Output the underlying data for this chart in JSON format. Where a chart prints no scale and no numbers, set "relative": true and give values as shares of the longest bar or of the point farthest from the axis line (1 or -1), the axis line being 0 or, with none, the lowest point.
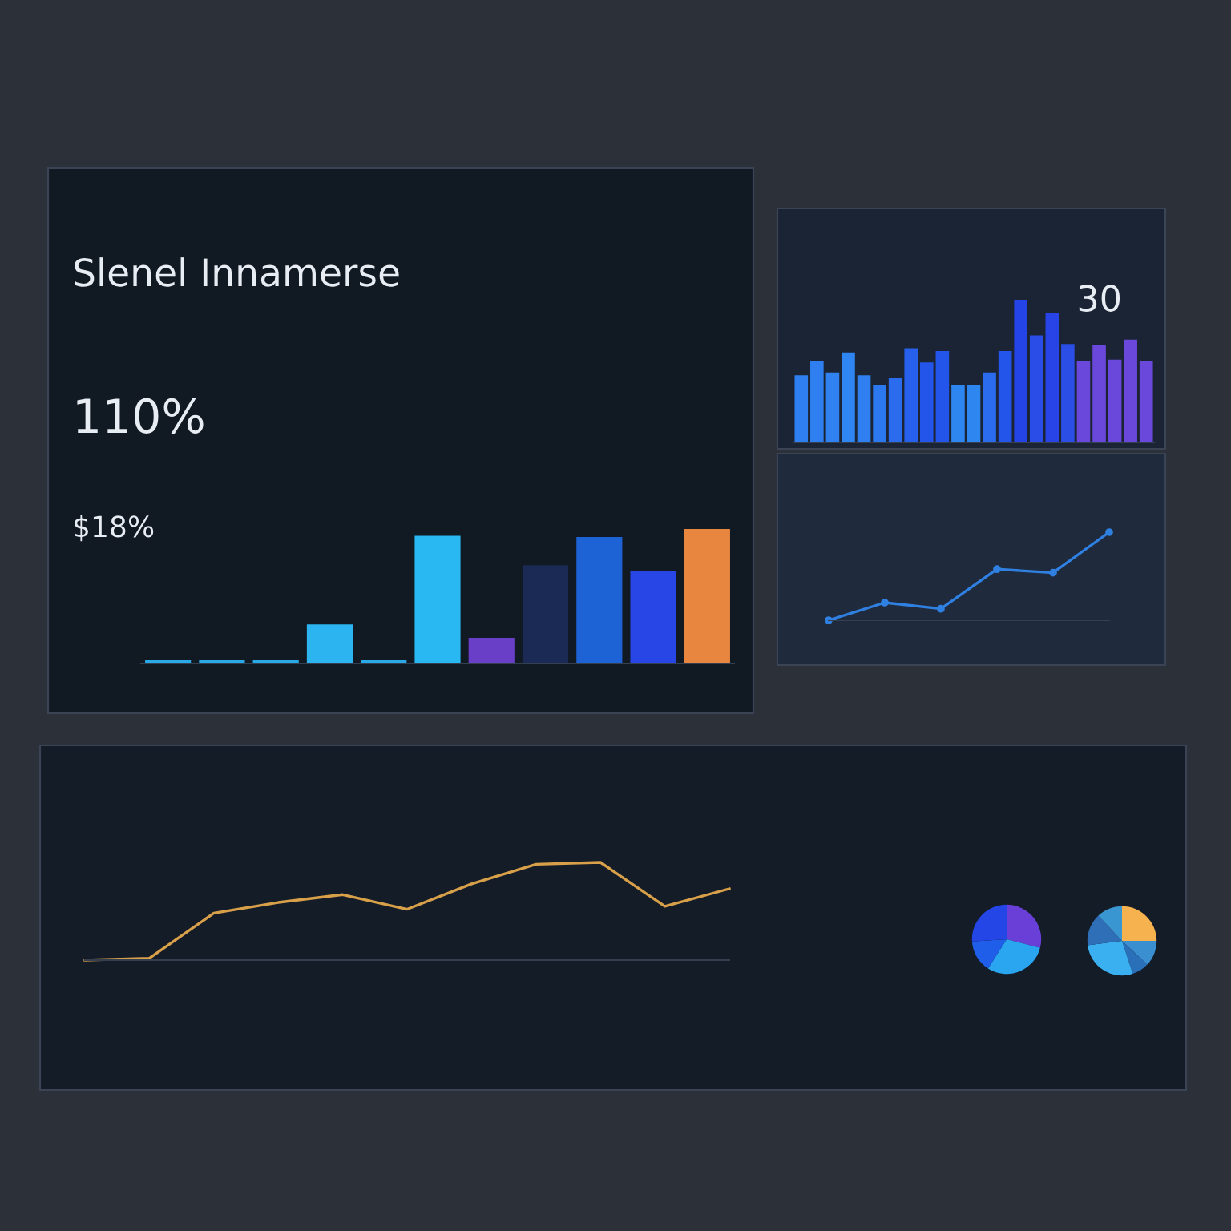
{
  "chart_data": [
    {
      "type": "bar",
      "relative": true,
      "title": "Slenel Innamerse",
      "annotations": [
        "110%",
        "$18%"
      ],
      "categories": [
        null,
        null,
        null,
        null,
        null,
        null,
        null,
        null,
        null,
        null,
        null
      ],
      "values": [
        0.03,
        0.03,
        0.03,
        0.29,
        0.03,
        0.95,
        0.19,
        0.73,
        0.94,
        0.69,
        1
      ],
      "colors": [
        "#29a9e8",
        "#29a9e8",
        "#29a9e8",
        "#2bb4ef",
        "#29a9e8",
        "#2ab8f2",
        "#6a3fc8",
        "#1a2a55",
        "#1e63d6",
        "#2846e6",
        "#e8863f"
      ]
    },
    {
      "type": "bar",
      "relative": true,
      "annotations": [
        "30"
      ],
      "categories": [
        null,
        null,
        null,
        null,
        null,
        null,
        null,
        null,
        null,
        null,
        null,
        null,
        null,
        null,
        null,
        null,
        null,
        null,
        null,
        null,
        null,
        null,
        null
      ],
      "values": [
        0.47,
        0.57,
        0.49,
        0.63,
        0.47,
        0.4,
        0.45,
        0.66,
        0.56,
        0.64,
        0.4,
        0.4,
        0.49,
        0.64,
        1,
        0.75,
        0.91,
        0.69,
        0.57,
        0.68,
        0.58,
        0.72,
        0.57
      ],
      "colors": [
        "#2f7ff0",
        "#2f7ff0",
        "#2f82f0",
        "#2f86f2",
        "#2f7ff0",
        "#2c78ee",
        "#2a6ced",
        "#2760ec",
        "#2455ea",
        "#2455ea",
        "#2e86f0",
        "#2e86f0",
        "#2a6ced",
        "#2455ea",
        "#2444e8",
        "#2a4de8",
        "#2844e6",
        "#2a4ee6",
        "#6a48dc",
        "#6a48dc",
        "#6a48dc",
        "#6a48dc",
        "#6a48dc"
      ]
    },
    {
      "type": "line",
      "relative": true,
      "color": "#2f80e0",
      "marker": "circle",
      "categories": [
        null,
        null,
        null,
        null,
        null,
        null
      ],
      "values": [
        0,
        0.2,
        0.13,
        0.58,
        0.54,
        1
      ]
    },
    {
      "type": "line",
      "relative": true,
      "color": "#d9a04a",
      "categories": [
        null,
        null,
        null,
        null,
        null,
        null,
        null,
        null,
        null,
        null,
        null
      ],
      "values": [
        0,
        0.02,
        0.48,
        0.59,
        0.67,
        0.52,
        0.78,
        0.98,
        1,
        0.55,
        0.73
      ]
    },
    {
      "type": "pie",
      "categories": [
        null,
        null,
        null,
        null
      ],
      "values": [
        29,
        30,
        15,
        26
      ],
      "colors": [
        "#6a3fd8",
        "#2aa6f0",
        "#1f5ee8",
        "#2446e6"
      ]
    },
    {
      "type": "pie",
      "categories": [
        null,
        null,
        null,
        null,
        null,
        null
      ],
      "values": [
        25,
        12,
        8,
        28,
        15,
        12
      ],
      "colors": [
        "#f5b24e",
        "#3a8fd0",
        "#2a70b8",
        "#3bb0f0",
        "#2f6fb8",
        "#3a96d0"
      ]
    }
  ]
}
